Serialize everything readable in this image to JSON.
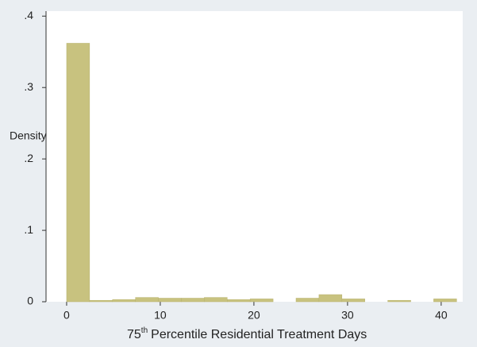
{
  "chart_data": {
    "type": "histogram",
    "x_label": [
      "75",
      "th",
      "Percentile Residential Treatment Days"
    ],
    "y_label": "Density",
    "bins": [
      0,
      2.45,
      4.9,
      7.35,
      9.8,
      12.25,
      14.7,
      17.15,
      19.6,
      22.05,
      24.5,
      26.95,
      29.4,
      31.85,
      34.3,
      36.75,
      39.2,
      41.65
    ],
    "values": [
      0.362,
      0.002,
      0.003,
      0.006,
      0.005,
      0.005,
      0.006,
      0.003,
      0.004,
      0,
      0.005,
      0.01,
      0.004,
      0,
      0.002,
      0,
      0.004
    ],
    "color": "#c8c27f",
    "xlim": [
      -2.2,
      42.3
    ],
    "ylim": [
      0,
      0.407
    ],
    "xticks": [
      0,
      10,
      20,
      30,
      40
    ],
    "yticks": [
      {
        "value": 0,
        "label": "0"
      },
      {
        "value": 0.1,
        "label": ".1"
      },
      {
        "value": 0.2,
        "label": ".2"
      },
      {
        "value": 0.3,
        "label": ".3"
      },
      {
        "value": 0.4,
        "label": ".4"
      }
    ]
  }
}
